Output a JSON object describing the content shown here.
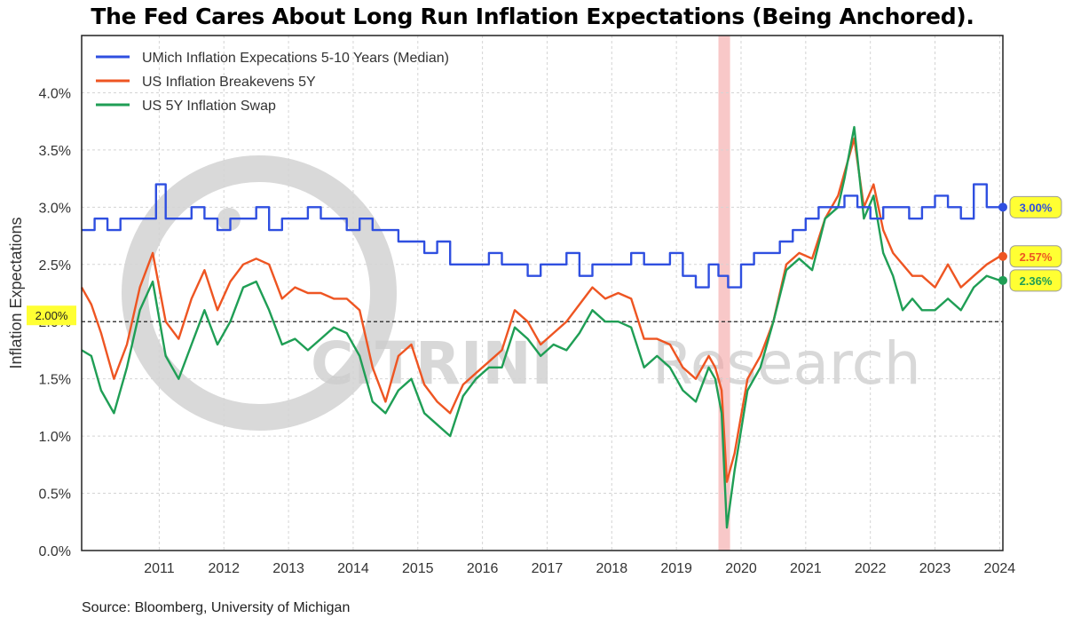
{
  "title": "The Fed Cares About Long Run Inflation Expectations (Being Anchored).",
  "source": "Source: Bloomberg, University of Michigan",
  "watermark": {
    "text_left": "CITRINI",
    "text_right": "Research"
  },
  "colors": {
    "umich": "#2f4fe0",
    "breakevens": "#ee5522",
    "swap": "#1f9e55",
    "recession": "#f4a3a3",
    "reference": "#222222",
    "tag_fill": "#ffff33",
    "watermark": "#cccccc"
  },
  "chart_data": {
    "type": "line",
    "title": "The Fed Cares About Long Run Inflation Expectations (Being Anchored).",
    "ylabel": "Inflation Expectations",
    "xlabel": "",
    "xlim": [
      2010.3,
      2024.55
    ],
    "ylim": [
      0.0,
      4.5
    ],
    "y_ticks": [
      "0.0%",
      "0.5%",
      "1.0%",
      "1.5%",
      "2.0%",
      "2.5%",
      "3.0%",
      "3.5%",
      "4.0%"
    ],
    "x_ticks": [
      "2011",
      "2012",
      "2013",
      "2014",
      "2015",
      "2016",
      "2017",
      "2018",
      "2019",
      "2020",
      "2021",
      "2022",
      "2023",
      "2024"
    ],
    "grid": true,
    "legend_position": "top-left",
    "reference_line": {
      "y": 2.0,
      "label": "2.00%"
    },
    "recession_band": [
      2020.15,
      2020.33
    ],
    "series": [
      {
        "name": "UMich Inflation Expecations 5-10 Years (Median)",
        "end_label": "3.00%",
        "x": [
          2010.3,
          2010.5,
          2010.7,
          2010.9,
          2011.1,
          2011.3,
          2011.45,
          2011.6,
          2011.8,
          2012.0,
          2012.2,
          2012.4,
          2012.6,
          2012.8,
          2013.0,
          2013.2,
          2013.4,
          2013.6,
          2013.8,
          2014.0,
          2014.2,
          2014.4,
          2014.6,
          2014.8,
          2015.0,
          2015.2,
          2015.4,
          2015.6,
          2015.8,
          2016.0,
          2016.2,
          2016.4,
          2016.6,
          2016.8,
          2017.0,
          2017.2,
          2017.4,
          2017.6,
          2017.8,
          2018.0,
          2018.2,
          2018.4,
          2018.6,
          2018.8,
          2019.0,
          2019.2,
          2019.4,
          2019.6,
          2019.8,
          2020.0,
          2020.15,
          2020.3,
          2020.5,
          2020.7,
          2020.9,
          2021.1,
          2021.3,
          2021.5,
          2021.7,
          2021.9,
          2022.1,
          2022.3,
          2022.5,
          2022.7,
          2022.9,
          2023.1,
          2023.3,
          2023.5,
          2023.7,
          2023.9,
          2024.1,
          2024.3,
          2024.5
        ],
        "y": [
          2.8,
          2.9,
          2.8,
          2.9,
          2.9,
          2.9,
          3.2,
          2.9,
          2.9,
          3.0,
          2.9,
          2.8,
          2.9,
          2.9,
          3.0,
          2.8,
          2.9,
          2.9,
          3.0,
          2.9,
          2.9,
          2.8,
          2.9,
          2.8,
          2.8,
          2.7,
          2.7,
          2.6,
          2.7,
          2.5,
          2.5,
          2.5,
          2.6,
          2.5,
          2.5,
          2.4,
          2.5,
          2.5,
          2.6,
          2.4,
          2.5,
          2.5,
          2.5,
          2.6,
          2.5,
          2.5,
          2.6,
          2.4,
          2.3,
          2.5,
          2.4,
          2.3,
          2.5,
          2.6,
          2.6,
          2.7,
          2.8,
          2.9,
          3.0,
          3.0,
          3.1,
          3.0,
          2.9,
          3.0,
          3.0,
          2.9,
          3.0,
          3.1,
          3.0,
          2.9,
          3.2,
          3.0,
          3.0
        ]
      },
      {
        "name": "US Inflation Breakevens 5Y",
        "end_label": "2.57%",
        "x": [
          2010.3,
          2010.45,
          2010.6,
          2010.8,
          2011.0,
          2011.2,
          2011.4,
          2011.6,
          2011.8,
          2012.0,
          2012.2,
          2012.4,
          2012.6,
          2012.8,
          2013.0,
          2013.2,
          2013.4,
          2013.6,
          2013.8,
          2014.0,
          2014.2,
          2014.4,
          2014.6,
          2014.8,
          2015.0,
          2015.2,
          2015.4,
          2015.6,
          2015.8,
          2016.0,
          2016.2,
          2016.4,
          2016.6,
          2016.8,
          2017.0,
          2017.2,
          2017.4,
          2017.6,
          2017.8,
          2018.0,
          2018.2,
          2018.4,
          2018.6,
          2018.8,
          2019.0,
          2019.2,
          2019.4,
          2019.6,
          2019.8,
          2020.0,
          2020.1,
          2020.2,
          2020.28,
          2020.4,
          2020.6,
          2020.8,
          2021.0,
          2021.2,
          2021.4,
          2021.6,
          2021.8,
          2022.0,
          2022.1,
          2022.25,
          2022.4,
          2022.55,
          2022.7,
          2022.85,
          2023.0,
          2023.15,
          2023.3,
          2023.5,
          2023.7,
          2023.9,
          2024.1,
          2024.3,
          2024.5
        ],
        "y": [
          2.3,
          2.15,
          1.9,
          1.5,
          1.8,
          2.3,
          2.6,
          2.0,
          1.85,
          2.2,
          2.45,
          2.1,
          2.35,
          2.5,
          2.55,
          2.5,
          2.2,
          2.3,
          2.25,
          2.25,
          2.2,
          2.2,
          2.1,
          1.6,
          1.3,
          1.7,
          1.8,
          1.45,
          1.3,
          1.2,
          1.45,
          1.55,
          1.65,
          1.75,
          2.1,
          2.0,
          1.8,
          1.9,
          2.0,
          2.15,
          2.3,
          2.2,
          2.25,
          2.2,
          1.85,
          1.85,
          1.8,
          1.6,
          1.5,
          1.7,
          1.6,
          1.4,
          0.6,
          0.85,
          1.5,
          1.7,
          2.0,
          2.5,
          2.6,
          2.55,
          2.9,
          3.1,
          3.3,
          3.6,
          3.0,
          3.2,
          2.8,
          2.6,
          2.5,
          2.4,
          2.4,
          2.3,
          2.5,
          2.3,
          2.4,
          2.5,
          2.57
        ]
      },
      {
        "name": "US 5Y Inflation Swap",
        "end_label": "2.36%",
        "x": [
          2010.3,
          2010.45,
          2010.6,
          2010.8,
          2011.0,
          2011.2,
          2011.4,
          2011.6,
          2011.8,
          2012.0,
          2012.2,
          2012.4,
          2012.6,
          2012.8,
          2013.0,
          2013.2,
          2013.4,
          2013.6,
          2013.8,
          2014.0,
          2014.2,
          2014.4,
          2014.6,
          2014.8,
          2015.0,
          2015.2,
          2015.4,
          2015.6,
          2015.8,
          2016.0,
          2016.2,
          2016.4,
          2016.6,
          2016.8,
          2017.0,
          2017.2,
          2017.4,
          2017.6,
          2017.8,
          2018.0,
          2018.2,
          2018.4,
          2018.6,
          2018.8,
          2019.0,
          2019.2,
          2019.4,
          2019.6,
          2019.8,
          2020.0,
          2020.1,
          2020.2,
          2020.28,
          2020.4,
          2020.6,
          2020.8,
          2021.0,
          2021.2,
          2021.4,
          2021.6,
          2021.8,
          2022.0,
          2022.1,
          2022.25,
          2022.4,
          2022.55,
          2022.7,
          2022.85,
          2023.0,
          2023.15,
          2023.3,
          2023.5,
          2023.7,
          2023.9,
          2024.1,
          2024.3,
          2024.5
        ],
        "y": [
          1.75,
          1.7,
          1.4,
          1.2,
          1.6,
          2.1,
          2.35,
          1.7,
          1.5,
          1.8,
          2.1,
          1.8,
          2.0,
          2.3,
          2.35,
          2.1,
          1.8,
          1.85,
          1.75,
          1.85,
          1.95,
          1.9,
          1.7,
          1.3,
          1.2,
          1.4,
          1.5,
          1.2,
          1.1,
          1.0,
          1.35,
          1.5,
          1.6,
          1.6,
          1.95,
          1.85,
          1.7,
          1.8,
          1.75,
          1.9,
          2.1,
          2.0,
          2.0,
          1.95,
          1.6,
          1.7,
          1.6,
          1.4,
          1.3,
          1.6,
          1.5,
          1.2,
          0.2,
          0.7,
          1.4,
          1.6,
          2.0,
          2.45,
          2.55,
          2.45,
          2.9,
          3.0,
          3.25,
          3.7,
          2.9,
          3.1,
          2.6,
          2.4,
          2.1,
          2.2,
          2.1,
          2.1,
          2.2,
          2.1,
          2.3,
          2.4,
          2.36
        ]
      }
    ]
  }
}
